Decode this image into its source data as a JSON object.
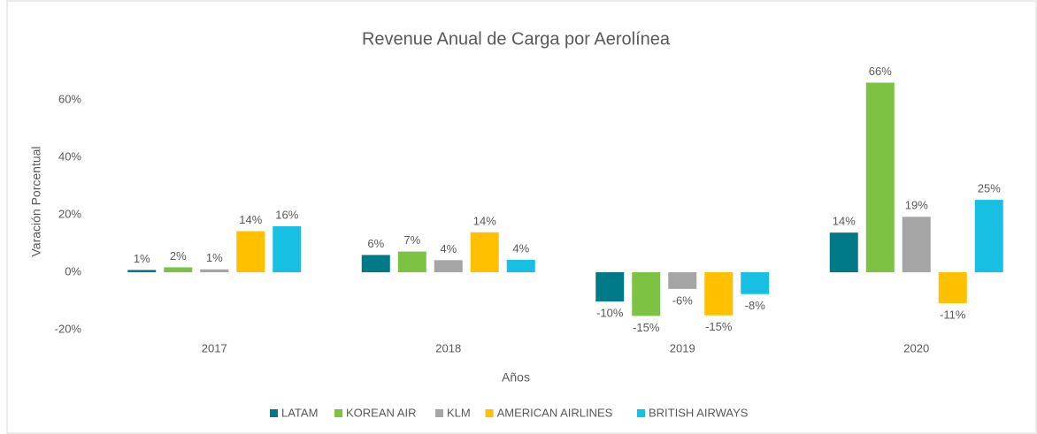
{
  "chart_data": {
    "type": "bar",
    "title": "Revenue Anual de Carga por Aerolínea",
    "x_label": "Años",
    "y_label": "Varación Porcentual",
    "categories": [
      "2017",
      "2018",
      "2019",
      "2020"
    ],
    "series": [
      {
        "name": "LATAM",
        "color": "#007a87",
        "values": [
          0.8,
          6,
          -10.2,
          13.8
        ],
        "value_labels": [
          "1%",
          "6%",
          "-10%",
          "14%"
        ]
      },
      {
        "name": "KOREAN AIR",
        "color": "#7dc242",
        "values": [
          1.7,
          7.2,
          -15.2,
          66
        ],
        "value_labels": [
          "2%",
          "7%",
          "-15%",
          "66%"
        ]
      },
      {
        "name": "KLM",
        "color": "#a5a5a5",
        "values": [
          1.0,
          4.2,
          -5.8,
          19.3
        ],
        "value_labels": [
          "1%",
          "4%",
          "-6%",
          "19%"
        ]
      },
      {
        "name": "AMERICAN AIRLINES",
        "color": "#ffc000",
        "values": [
          14.3,
          13.9,
          -15.0,
          -10.8
        ],
        "value_labels": [
          "14%",
          "14%",
          "-15%",
          "-11%"
        ]
      },
      {
        "name": "BRITISH AIRWAYS",
        "color": "#17bfe3",
        "values": [
          16,
          4.3,
          -7.6,
          25.2
        ],
        "value_labels": [
          "16%",
          "4%",
          "-8%",
          "25%"
        ]
      }
    ],
    "ylim": [
      -20,
      70
    ],
    "yticks": [
      {
        "value": -20,
        "label": "-20%"
      },
      {
        "value": 0,
        "label": "0%"
      },
      {
        "value": 20,
        "label": "20%"
      },
      {
        "value": 40,
        "label": "40%"
      },
      {
        "value": 60,
        "label": "60%"
      }
    ],
    "grid": false,
    "legend": "bottom"
  }
}
